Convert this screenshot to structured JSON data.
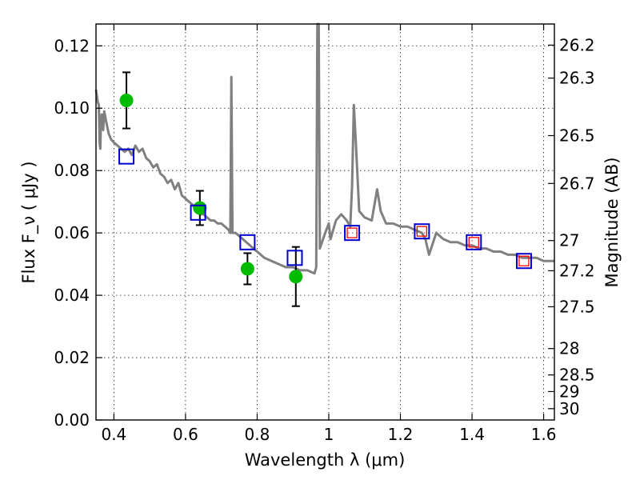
{
  "chart_data": {
    "type": "line",
    "xlabel": "Wavelength  λ (μm)",
    "ylabel": "Flux  F_ν  ( μJy )",
    "ylabel_right": "Magnitude (AB)",
    "xlim": [
      0.35,
      1.63
    ],
    "ylim": [
      0.0,
      0.127
    ],
    "grid": true,
    "x_ticks": [
      0.4,
      0.6,
      0.8,
      1.0,
      1.2,
      1.4,
      1.6
    ],
    "x_tick_labels": [
      "0.4",
      "0.6",
      "0.8",
      "1",
      "1.2",
      "1.4",
      "1.6"
    ],
    "y_ticks": [
      0.0,
      0.02,
      0.04,
      0.06,
      0.08,
      0.1,
      0.12
    ],
    "y_tick_labels": [
      "0.00",
      "0.02",
      "0.04",
      "0.06",
      "0.08",
      "0.10",
      "0.12"
    ],
    "right_ticks": [
      {
        "label": "26.2",
        "mag": 26.2
      },
      {
        "label": "26.3",
        "mag": 26.3
      },
      {
        "label": "26.5",
        "mag": 26.5
      },
      {
        "label": "26.7",
        "mag": 26.7
      },
      {
        "label": "27",
        "mag": 27.0
      },
      {
        "label": "27.2",
        "mag": 27.2
      },
      {
        "label": "27.5",
        "mag": 27.5
      },
      {
        "label": "28",
        "mag": 28.0
      },
      {
        "label": "28.5",
        "mag": 28.5
      },
      {
        "label": "29",
        "mag": 29.0
      },
      {
        "label": "30",
        "mag": 30.0
      }
    ],
    "series": [
      {
        "kind": "line",
        "color": "#808080",
        "points": [
          [
            0.35,
            0.106
          ],
          [
            0.355,
            0.102
          ],
          [
            0.358,
            0.101
          ],
          [
            0.36,
            0.089
          ],
          [
            0.362,
            0.087
          ],
          [
            0.364,
            0.097
          ],
          [
            0.366,
            0.098
          ],
          [
            0.37,
            0.093
          ],
          [
            0.373,
            0.099
          ],
          [
            0.378,
            0.096
          ],
          [
            0.385,
            0.092
          ],
          [
            0.392,
            0.09
          ],
          [
            0.4,
            0.089
          ],
          [
            0.41,
            0.088
          ],
          [
            0.42,
            0.087
          ],
          [
            0.43,
            0.086
          ],
          [
            0.44,
            0.087
          ],
          [
            0.45,
            0.085
          ],
          [
            0.46,
            0.088
          ],
          [
            0.47,
            0.086
          ],
          [
            0.48,
            0.087
          ],
          [
            0.49,
            0.084
          ],
          [
            0.5,
            0.083
          ],
          [
            0.51,
            0.081
          ],
          [
            0.52,
            0.082
          ],
          [
            0.53,
            0.079
          ],
          [
            0.54,
            0.078
          ],
          [
            0.55,
            0.076
          ],
          [
            0.56,
            0.077
          ],
          [
            0.57,
            0.074
          ],
          [
            0.58,
            0.076
          ],
          [
            0.59,
            0.072
          ],
          [
            0.6,
            0.071
          ],
          [
            0.61,
            0.07
          ],
          [
            0.62,
            0.069
          ],
          [
            0.63,
            0.067
          ],
          [
            0.64,
            0.066
          ],
          [
            0.65,
            0.066
          ],
          [
            0.66,
            0.065
          ],
          [
            0.67,
            0.064
          ],
          [
            0.68,
            0.064
          ],
          [
            0.69,
            0.063
          ],
          [
            0.7,
            0.063
          ],
          [
            0.71,
            0.062
          ],
          [
            0.72,
            0.061
          ],
          [
            0.725,
            0.06
          ],
          [
            0.728,
            0.11
          ],
          [
            0.731,
            0.06
          ],
          [
            0.74,
            0.06
          ],
          [
            0.76,
            0.058
          ],
          [
            0.78,
            0.056
          ],
          [
            0.8,
            0.054
          ],
          [
            0.82,
            0.052
          ],
          [
            0.84,
            0.051
          ],
          [
            0.86,
            0.05
          ],
          [
            0.88,
            0.049
          ],
          [
            0.9,
            0.049
          ],
          [
            0.92,
            0.048
          ],
          [
            0.94,
            0.048
          ],
          [
            0.96,
            0.047
          ],
          [
            0.965,
            0.049
          ],
          [
            0.968,
            0.127
          ],
          [
            0.972,
            0.127
          ],
          [
            0.975,
            0.055
          ],
          [
            0.99,
            0.06
          ],
          [
            1.0,
            0.063
          ],
          [
            1.005,
            0.058
          ],
          [
            1.02,
            0.064
          ],
          [
            1.035,
            0.066
          ],
          [
            1.05,
            0.064
          ],
          [
            1.06,
            0.062
          ],
          [
            1.065,
            0.075
          ],
          [
            1.07,
            0.101
          ],
          [
            1.075,
            0.09
          ],
          [
            1.085,
            0.067
          ],
          [
            1.1,
            0.065
          ],
          [
            1.12,
            0.064
          ],
          [
            1.135,
            0.074
          ],
          [
            1.145,
            0.067
          ],
          [
            1.16,
            0.063
          ],
          [
            1.18,
            0.063
          ],
          [
            1.2,
            0.062
          ],
          [
            1.22,
            0.062
          ],
          [
            1.24,
            0.061
          ],
          [
            1.26,
            0.06
          ],
          [
            1.27,
            0.058
          ],
          [
            1.28,
            0.053
          ],
          [
            1.3,
            0.06
          ],
          [
            1.32,
            0.058
          ],
          [
            1.34,
            0.057
          ],
          [
            1.36,
            0.057
          ],
          [
            1.38,
            0.056
          ],
          [
            1.4,
            0.056
          ],
          [
            1.42,
            0.055
          ],
          [
            1.44,
            0.055
          ],
          [
            1.46,
            0.054
          ],
          [
            1.48,
            0.054
          ],
          [
            1.5,
            0.053
          ],
          [
            1.52,
            0.053
          ],
          [
            1.54,
            0.052
          ],
          [
            1.56,
            0.052
          ],
          [
            1.58,
            0.052
          ],
          [
            1.6,
            0.051
          ],
          [
            1.63,
            0.051
          ]
        ]
      },
      {
        "kind": "points",
        "marker": "circle",
        "color": "#00bb00",
        "points": [
          {
            "x": 0.435,
            "y": 0.1025,
            "err": 0.009
          },
          {
            "x": 0.64,
            "y": 0.068,
            "err": 0.0055
          },
          {
            "x": 0.773,
            "y": 0.0485,
            "err": 0.005
          },
          {
            "x": 0.908,
            "y": 0.046,
            "err": 0.0095
          }
        ]
      },
      {
        "kind": "points",
        "marker": "square",
        "color": "#0000cc",
        "points": [
          {
            "x": 0.435,
            "y": 0.0845
          },
          {
            "x": 0.635,
            "y": 0.0665
          },
          {
            "x": 0.773,
            "y": 0.057
          },
          {
            "x": 0.905,
            "y": 0.052
          },
          {
            "x": 1.065,
            "y": 0.06
          },
          {
            "x": 1.26,
            "y": 0.0605
          },
          {
            "x": 1.405,
            "y": 0.057
          },
          {
            "x": 1.545,
            "y": 0.051
          }
        ]
      },
      {
        "kind": "points",
        "marker": "square",
        "color": "#ff0000",
        "points": [
          {
            "x": 1.065,
            "y": 0.06
          },
          {
            "x": 1.26,
            "y": 0.0605
          },
          {
            "x": 1.405,
            "y": 0.057
          },
          {
            "x": 1.545,
            "y": 0.051
          }
        ]
      }
    ]
  }
}
